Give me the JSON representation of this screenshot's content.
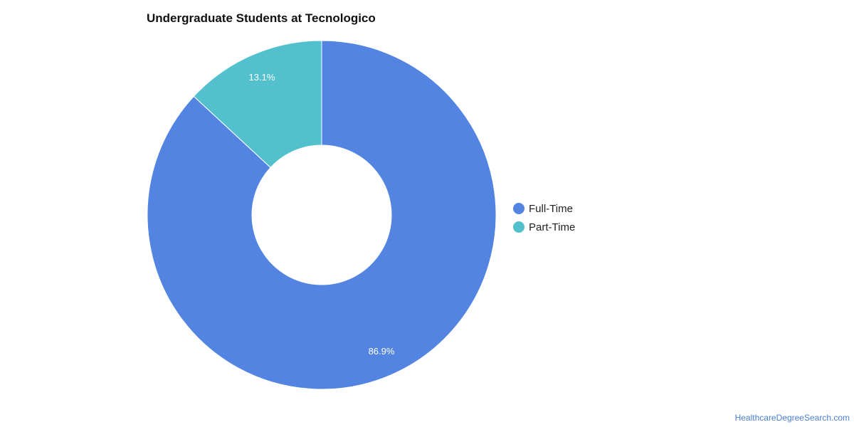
{
  "chart_data": {
    "type": "pie",
    "title": "Undergraduate Students at Tecnologico",
    "categories": [
      "Full-Time",
      "Part-Time"
    ],
    "values": [
      86.9,
      13.1
    ],
    "data_labels": [
      "86.9%",
      "13.1%"
    ],
    "colors": [
      "#5384e2",
      "#52c1cd"
    ],
    "donut": true,
    "legend_position": "right"
  },
  "legend": {
    "items": [
      {
        "label": "Full-Time",
        "color": "#5384e2"
      },
      {
        "label": "Part-Time",
        "color": "#52c1cd"
      }
    ]
  },
  "footer": {
    "source": "HealthcareDegreeSearch.com"
  }
}
